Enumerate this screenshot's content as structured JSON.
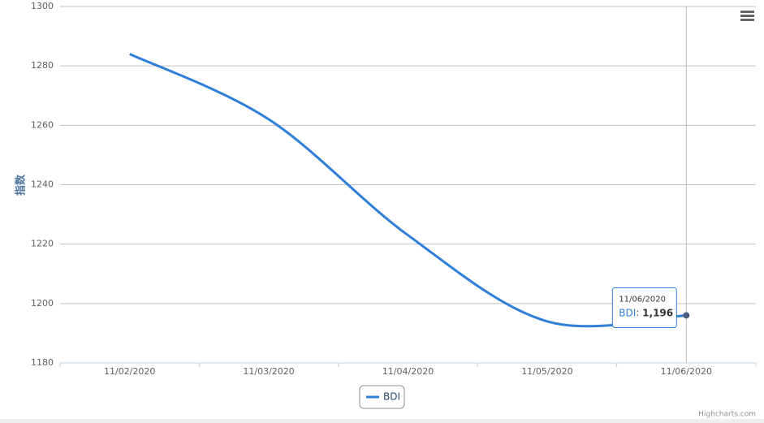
{
  "chart_data": {
    "type": "line",
    "y_axis_label": "指数",
    "categories": [
      "11/02/2020",
      "11/03/2020",
      "11/04/2020",
      "11/05/2020",
      "11/06/2020"
    ],
    "series": [
      {
        "name": "BDI",
        "color": "#2f7ed8",
        "values": [
          1284,
          1262,
          1223,
          1194,
          1196
        ],
        "value_labels": [
          null,
          null,
          null,
          null,
          "1,196"
        ]
      }
    ],
    "ylim": [
      1180,
      1300
    ],
    "yticks": [
      1180,
      1200,
      1220,
      1240,
      1260,
      1280,
      1300
    ],
    "grid": true,
    "credits": "Highcharts.com"
  }
}
